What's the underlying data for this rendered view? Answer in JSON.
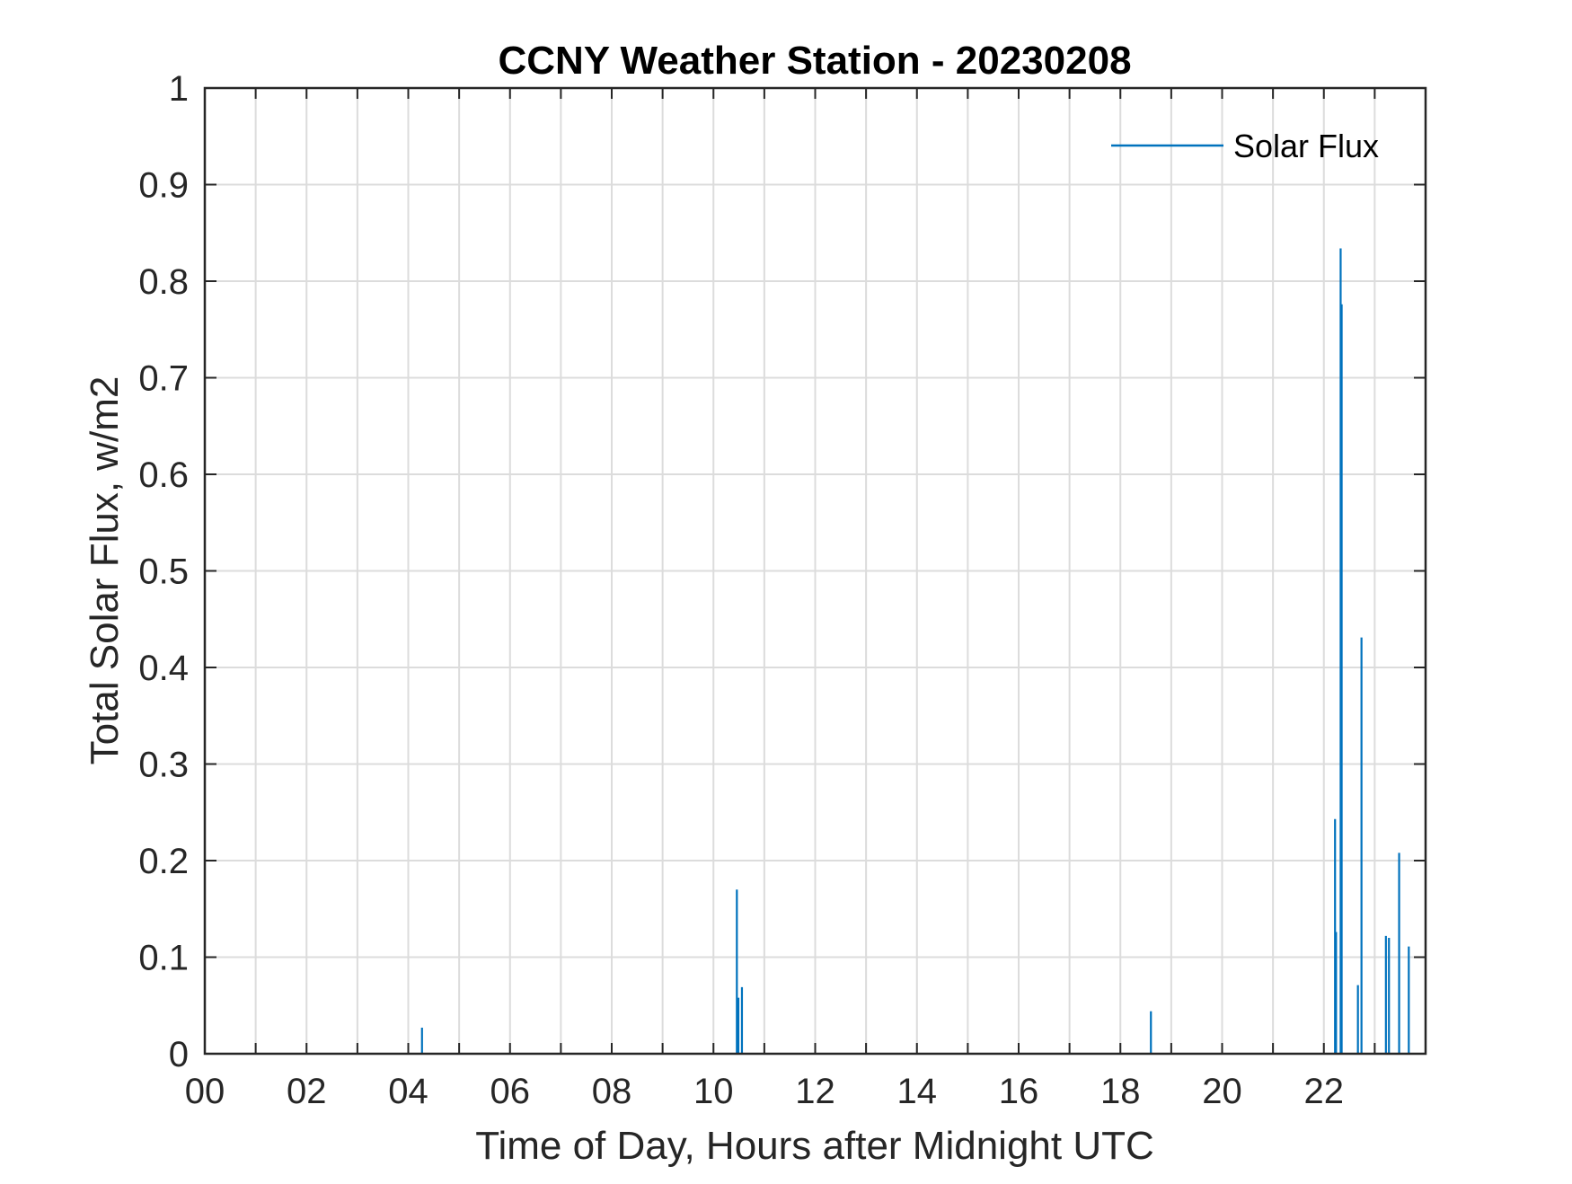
{
  "chart_data": {
    "type": "line",
    "title": "CCNY Weather Station - 20230208",
    "xlabel": "Time of Day, Hours after Midnight UTC",
    "ylabel": "Total Solar Flux, w/m2",
    "xlim": [
      0,
      24
    ],
    "ylim": [
      0,
      1
    ],
    "xticks": [
      0,
      2,
      4,
      6,
      8,
      10,
      12,
      14,
      16,
      18,
      20,
      22
    ],
    "xtick_labels": [
      "00",
      "02",
      "04",
      "06",
      "08",
      "10",
      "12",
      "14",
      "16",
      "18",
      "20",
      "22"
    ],
    "yticks": [
      0,
      0.1,
      0.2,
      0.3,
      0.4,
      0.5,
      0.6,
      0.7,
      0.8,
      0.9,
      1
    ],
    "ytick_labels": [
      "0",
      "0.1",
      "0.2",
      "0.3",
      "0.4",
      "0.5",
      "0.6",
      "0.7",
      "0.8",
      "0.9",
      "1"
    ],
    "grid": true,
    "legend_position": "top-right",
    "series": [
      {
        "name": "Solar Flux",
        "color": "#0072BD",
        "x": [
          4.27,
          10.46,
          10.49,
          10.56,
          18.6,
          22.22,
          22.24,
          22.33,
          22.35,
          22.67,
          22.74,
          23.22,
          23.28,
          23.48,
          23.67
        ],
        "y": [
          0.027,
          0.17,
          0.058,
          0.069,
          0.044,
          0.243,
          0.126,
          0.834,
          0.776,
          0.071,
          0.431,
          0.122,
          0.12,
          0.208,
          0.111
        ]
      }
    ]
  }
}
